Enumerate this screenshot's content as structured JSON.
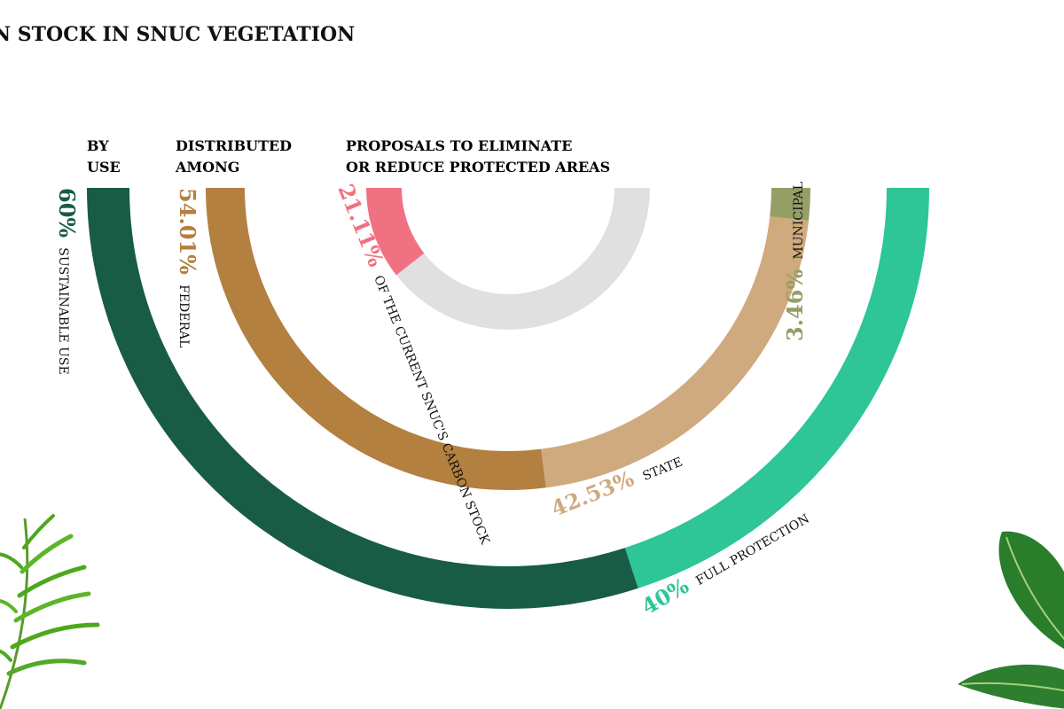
{
  "title": "N STOCK IN SNUC VEGETATION",
  "chart_data": [
    {
      "type": "pie",
      "header": [
        "BY",
        "USE"
      ],
      "slices": [
        {
          "value": 60,
          "value_label": "60%",
          "label": "SUSTAINABLE USE",
          "color": "#185c45"
        },
        {
          "value": 40,
          "value_label": "40%",
          "label": "FULL PROTECTION",
          "color": "#2ec597"
        }
      ]
    },
    {
      "type": "pie",
      "header": [
        "DISTRIBUTED",
        "AMONG"
      ],
      "slices": [
        {
          "value": 54.01,
          "value_label": "54.01%",
          "label": "FEDERAL",
          "color": "#b38040"
        },
        {
          "value": 42.53,
          "value_label": "42.53%",
          "label": "STATE",
          "color": "#cfaa7e"
        },
        {
          "value": 3.46,
          "value_label": "3.46%",
          "label": "MUNICIPAL",
          "color": "#949f66"
        }
      ]
    },
    {
      "type": "pie",
      "header": [
        "PROPOSALS TO ELIMINATE",
        "OR REDUCE PROTECTED AREAS"
      ],
      "slices": [
        {
          "value": 21.11,
          "value_label": "21.11%",
          "label": "OF THE CURRENT SNUC'S CARBON STOCK",
          "color": "#f07282"
        },
        {
          "value": 78.89,
          "value_label": "",
          "label": "",
          "color": "#e0e0e0"
        }
      ]
    }
  ],
  "decorations": {
    "palm_color": "#4da81d",
    "leaf_color": "#2c7a2a"
  }
}
